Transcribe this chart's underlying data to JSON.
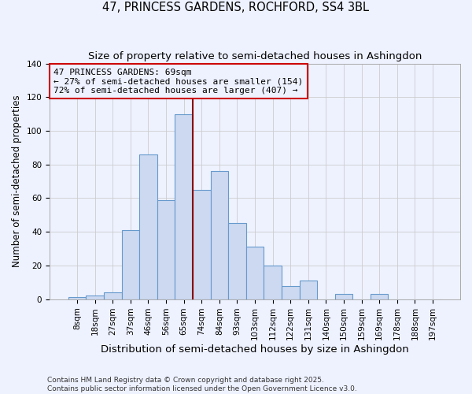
{
  "title": "47, PRINCESS GARDENS, ROCHFORD, SS4 3BL",
  "subtitle": "Size of property relative to semi-detached houses in Ashingdon",
  "xlabel": "Distribution of semi-detached houses by size in Ashingdon",
  "ylabel": "Number of semi-detached properties",
  "bin_labels": [
    "8sqm",
    "18sqm",
    "27sqm",
    "37sqm",
    "46sqm",
    "56sqm",
    "65sqm",
    "74sqm",
    "84sqm",
    "93sqm",
    "103sqm",
    "112sqm",
    "122sqm",
    "131sqm",
    "140sqm",
    "150sqm",
    "159sqm",
    "169sqm",
    "178sqm",
    "188sqm",
    "197sqm"
  ],
  "bar_values": [
    1,
    2,
    4,
    41,
    86,
    59,
    110,
    65,
    76,
    45,
    31,
    20,
    8,
    11,
    0,
    3,
    0,
    3,
    0,
    0,
    0
  ],
  "bar_color": "#ccd9f0",
  "bar_edge_color": "#6699cc",
  "bar_edge_width": 0.8,
  "background_color": "#eef2ff",
  "grid_color": "#cccccc",
  "vline_x": 6.5,
  "vline_color": "#880000",
  "annotation_text": "47 PRINCESS GARDENS: 69sqm\n← 27% of semi-detached houses are smaller (154)\n72% of semi-detached houses are larger (407) →",
  "annotation_box_edge": "#cc0000",
  "ylim": [
    0,
    140
  ],
  "footer1": "Contains HM Land Registry data © Crown copyright and database right 2025.",
  "footer2": "Contains public sector information licensed under the Open Government Licence v3.0.",
  "title_fontsize": 10.5,
  "subtitle_fontsize": 9.5,
  "xlabel_fontsize": 9.5,
  "ylabel_fontsize": 8.5,
  "annot_fontsize": 8,
  "tick_fontsize": 7.5,
  "footer_fontsize": 6.5
}
